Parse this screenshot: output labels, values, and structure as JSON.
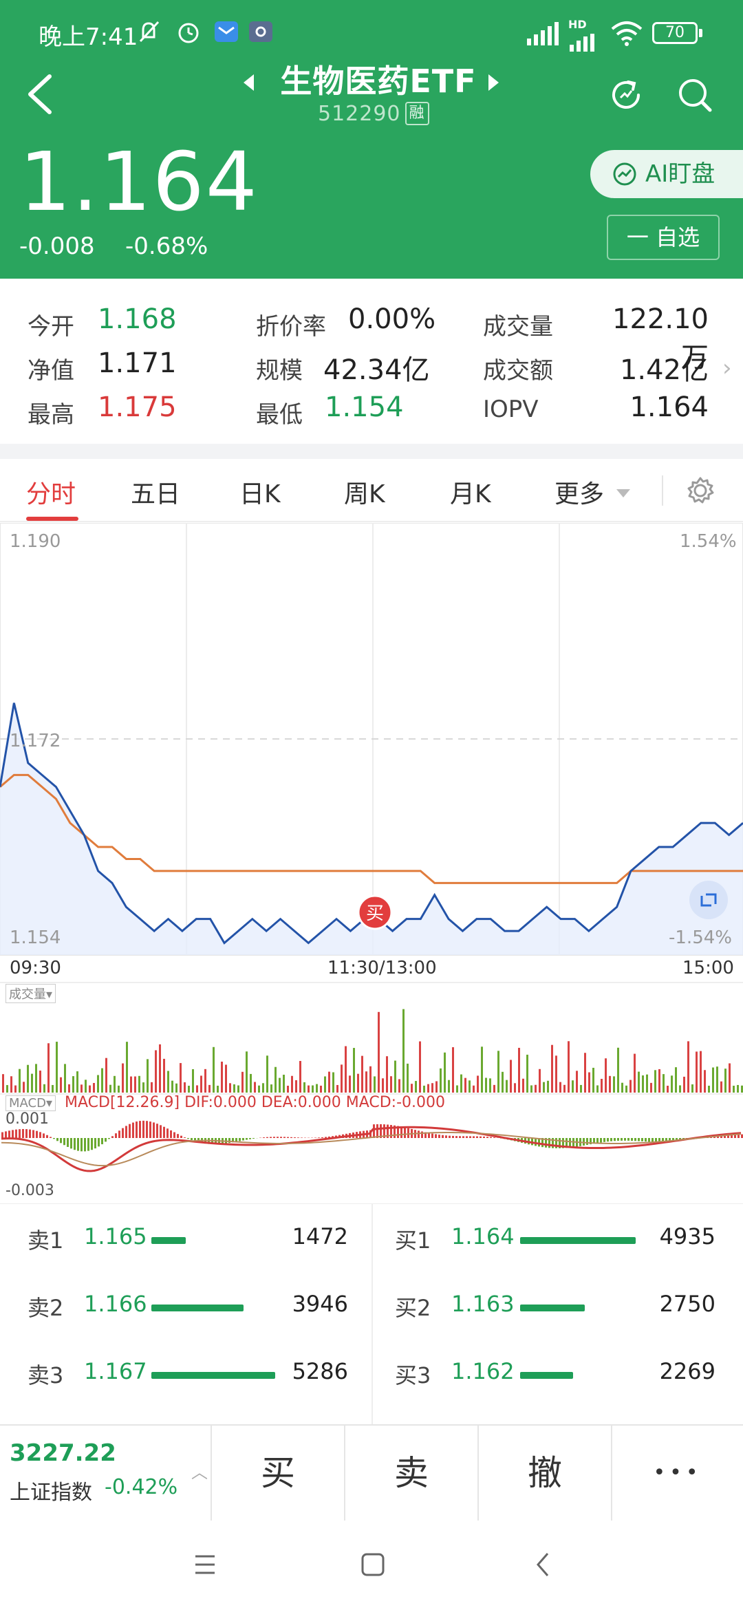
{
  "status_bar": {
    "time": "晚上7:41",
    "battery": "70",
    "network": "HD"
  },
  "header": {
    "title": "生物医药ETF",
    "code": "512290",
    "margin_badge": "融",
    "price": "1.164",
    "change": "-0.008",
    "change_pct": "-0.68%",
    "ai_button": "AI盯盘",
    "watchlist_button": "一 自选",
    "color": "#2aa55e"
  },
  "quote": {
    "open_label": "今开",
    "open": "1.168",
    "nav_label": "净值",
    "nav": "1.171",
    "high_label": "最高",
    "high": "1.175",
    "discount_label": "折价率",
    "discount": "0.00%",
    "scale_label": "规模",
    "scale": "42.34亿",
    "low_label": "最低",
    "low": "1.154",
    "volume_label": "成交量",
    "volume": "122.10万",
    "amount_label": "成交额",
    "amount": "1.42亿",
    "iopv_label": "IOPV",
    "iopv": "1.164"
  },
  "tabs": [
    "分时",
    "五日",
    "日K",
    "周K",
    "月K",
    "更多"
  ],
  "active_tab": 0,
  "chart": {
    "y_top": "1.190",
    "y_mid": "1.172",
    "y_bottom": "1.154",
    "pct_top": "1.54%",
    "pct_bottom": "-1.54%",
    "x_start": "09:30",
    "x_mid": "11:30/13:00",
    "x_end": "15:00",
    "buy_marker": "买",
    "volume_label": "成交量",
    "macd_selector": "MACD",
    "macd_info": "MACD[12.26.9] DIF:0.000 DEA:0.000 MACD:-0.000",
    "macd_top": "0.001",
    "macd_bottom": "-0.003"
  },
  "chart_data": {
    "type": "line",
    "title": "",
    "ylim": [
      1.154,
      1.19
    ],
    "series": [
      {
        "name": "",
        "values": [
          1.168,
          1.175,
          1.17,
          1.169,
          1.168,
          1.166,
          1.164,
          1.161,
          1.16,
          1.158,
          1.157,
          1.156,
          1.157,
          1.156,
          1.157,
          1.157,
          1.155,
          1.156,
          1.157,
          1.156,
          1.157,
          1.156,
          1.155,
          1.156,
          1.157,
          1.156,
          1.157,
          1.157,
          1.156,
          1.157,
          1.157,
          1.159,
          1.157,
          1.156,
          1.157,
          1.157,
          1.156,
          1.156,
          1.157,
          1.158,
          1.157,
          1.157,
          1.156,
          1.157,
          1.158,
          1.161,
          1.162,
          1.163,
          1.163,
          1.164,
          1.165,
          1.165,
          1.164,
          1.165
        ]
      },
      {
        "name": "",
        "values": [
          1.168,
          1.169,
          1.169,
          1.168,
          1.167,
          1.165,
          1.164,
          1.163,
          1.163,
          1.162,
          1.162,
          1.161,
          1.161,
          1.161,
          1.161,
          1.161,
          1.161,
          1.161,
          1.161,
          1.161,
          1.161,
          1.161,
          1.161,
          1.161,
          1.161,
          1.161,
          1.161,
          1.161,
          1.161,
          1.161,
          1.161,
          1.16,
          1.16,
          1.16,
          1.16,
          1.16,
          1.16,
          1.16,
          1.16,
          1.16,
          1.16,
          1.16,
          1.16,
          1.16,
          1.16,
          1.161,
          1.161,
          1.161,
          1.161,
          1.161,
          1.161,
          1.161,
          1.161,
          1.161
        ]
      }
    ]
  },
  "order_book": {
    "sell": [
      {
        "label": "卖1",
        "price": "1.165",
        "volume": "1472",
        "volume_n": 1472
      },
      {
        "label": "卖2",
        "price": "1.166",
        "volume": "3946",
        "volume_n": 3946
      },
      {
        "label": "卖3",
        "price": "1.167",
        "volume": "5286",
        "volume_n": 5286
      }
    ],
    "buy": [
      {
        "label": "买1",
        "price": "1.164",
        "volume": "4935",
        "volume_n": 4935
      },
      {
        "label": "买2",
        "price": "1.163",
        "volume": "2750",
        "volume_n": 2750
      },
      {
        "label": "买3",
        "price": "1.162",
        "volume": "2269",
        "volume_n": 2269
      }
    ]
  },
  "bottom_bar": {
    "index_value": "3227.22",
    "index_name": "上证指数",
    "index_change": "-0.42%",
    "buy": "买",
    "sell": "卖",
    "cancel": "撤",
    "more": "•••"
  }
}
